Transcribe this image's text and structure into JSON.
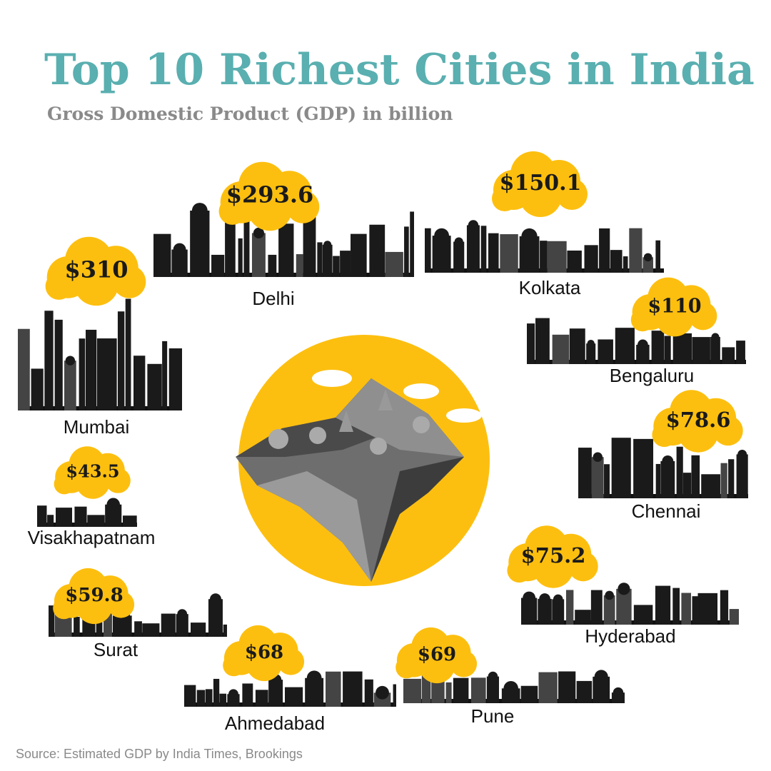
{
  "header": {
    "title": "Top 10 Richest Cities in India",
    "subtitle": "Gross Domestic Product (GDP) in billion"
  },
  "cities": [
    {
      "name": "Mumbai",
      "gdp": "$310"
    },
    {
      "name": "Delhi",
      "gdp": "$293.6"
    },
    {
      "name": "Kolkata",
      "gdp": "$150.1"
    },
    {
      "name": "Bengaluru",
      "gdp": "$110"
    },
    {
      "name": "Chennai",
      "gdp": "$78.6"
    },
    {
      "name": "Hyderabad",
      "gdp": "$75.2"
    },
    {
      "name": "Pune",
      "gdp": "$69"
    },
    {
      "name": "Ahmedabad",
      "gdp": "$68"
    },
    {
      "name": "Surat",
      "gdp": "$59.8"
    },
    {
      "name": "Visakhapatnam",
      "gdp": "$43.5"
    }
  ],
  "source": "Source: Estimated GDP by India Times, Brookings"
}
